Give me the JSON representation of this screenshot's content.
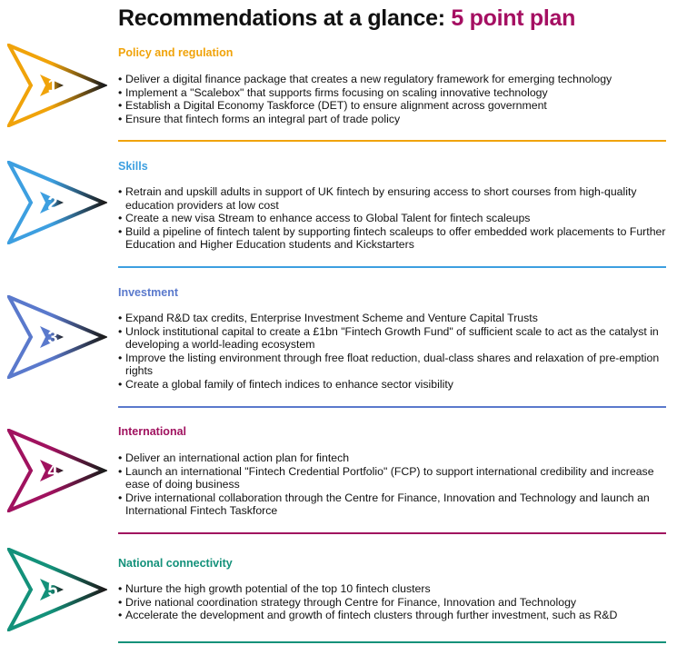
{
  "title": {
    "main": "Recommendations at a glance: ",
    "accent": "5 point plan"
  },
  "sections": [
    {
      "number": "1",
      "heading": "Policy and regulation",
      "color": "#f0a30a",
      "bullets": [
        "Deliver a digital finance package that creates a new regulatory framework for emerging technology",
        "Implement a \"Scalebox\" that supports firms focusing on scaling innovative technology",
        "Establish a Digital Economy Taskforce (DET) to ensure alignment across government",
        "Ensure that fintech forms an integral part of trade policy"
      ]
    },
    {
      "number": "2",
      "heading": "Skills",
      "color": "#3d9fe0",
      "bullets": [
        "Retrain and upskill adults in support of UK fintech by ensuring access to short courses from high-quality education providers at low cost",
        "Create a new visa Stream to enhance access to Global Talent for fintech scaleups",
        "Build a pipeline of fintech talent by supporting fintech scaleups to offer embedded work placements to Further Education and Higher Education students and Kickstarters"
      ]
    },
    {
      "number": "3",
      "heading": "Investment",
      "color": "#5a79cc",
      "bullets": [
        "Expand R&D tax credits, Enterprise Investment Scheme and Venture Capital Trusts",
        "Unlock institutional capital to create a £1bn \"Fintech Growth Fund\" of sufficient scale to act as the catalyst in developing a world-leading ecosystem",
        "Improve the listing environment through free float reduction, dual-class shares and relaxation of pre-emption rights",
        "Create a global family of fintech indices to enhance sector visibility"
      ]
    },
    {
      "number": "4",
      "heading": "International",
      "color": "#a0125f",
      "bullets": [
        "Deliver an international action plan for fintech",
        "Launch an international \"Fintech Credential Portfolio\" (FCP) to support international credibility and increase ease of doing business",
        "Drive international collaboration through the Centre for Finance, Innovation and Technology and launch an International Fintech Taskforce"
      ]
    },
    {
      "number": "5",
      "heading": "National connectivity",
      "color": "#13917a",
      "bullets": [
        "Nurture the high growth potential of the top 10 fintech clusters",
        "Drive national coordination strategy through Centre for Finance, Innovation and Technology",
        "Accelerate the development and growth of fintech clusters through further investment, such as R&D"
      ]
    }
  ]
}
